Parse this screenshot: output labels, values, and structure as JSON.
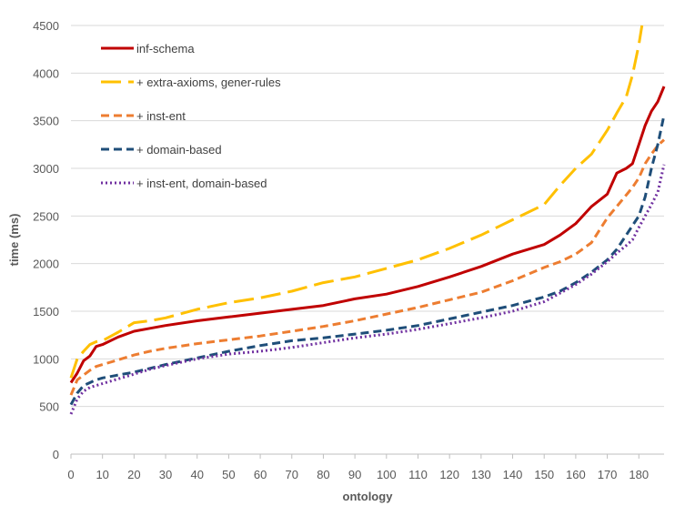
{
  "chart_data": {
    "type": "line",
    "title": "",
    "xlabel": "ontology",
    "ylabel": "time (ms)",
    "xlim": [
      0,
      188
    ],
    "ylim": [
      0,
      4500
    ],
    "xticks": [
      0,
      10,
      20,
      30,
      40,
      50,
      60,
      70,
      80,
      90,
      100,
      110,
      120,
      130,
      140,
      150,
      160,
      170,
      180
    ],
    "yticks": [
      0,
      500,
      1000,
      1500,
      2000,
      2500,
      3000,
      3500,
      4000,
      4500
    ],
    "grid": "horizontal",
    "legend_position": "top-left",
    "series": [
      {
        "name": "inf-schema",
        "color": "#C00000",
        "dash": "solid",
        "x": [
          0,
          2,
          4,
          6,
          8,
          10,
          15,
          20,
          25,
          30,
          40,
          50,
          60,
          70,
          80,
          90,
          100,
          110,
          120,
          130,
          140,
          150,
          155,
          160,
          165,
          170,
          173,
          176,
          178,
          180,
          182,
          184,
          186,
          188
        ],
        "y": [
          750,
          850,
          980,
          1030,
          1130,
          1150,
          1230,
          1290,
          1320,
          1350,
          1400,
          1440,
          1480,
          1520,
          1560,
          1630,
          1680,
          1760,
          1860,
          1970,
          2100,
          2200,
          2300,
          2420,
          2600,
          2730,
          2950,
          3000,
          3050,
          3250,
          3450,
          3600,
          3700,
          3860
        ]
      },
      {
        "name": "+ extra-axioms, gener-rules",
        "color": "#FFC000",
        "dash": "long-dash",
        "x": [
          0,
          2,
          4,
          6,
          8,
          10,
          15,
          20,
          25,
          30,
          40,
          50,
          60,
          70,
          80,
          90,
          100,
          110,
          120,
          130,
          140,
          150,
          155,
          160,
          165,
          170,
          173,
          176,
          178,
          180,
          181
        ],
        "y": [
          800,
          1000,
          1080,
          1150,
          1180,
          1190,
          1280,
          1380,
          1400,
          1430,
          1520,
          1590,
          1640,
          1710,
          1800,
          1860,
          1950,
          2040,
          2160,
          2300,
          2460,
          2620,
          2820,
          3000,
          3150,
          3400,
          3580,
          3750,
          3980,
          4300,
          4500
        ]
      },
      {
        "name": "+ inst-ent",
        "color": "#ED7D31",
        "dash": "dash",
        "x": [
          0,
          2,
          4,
          6,
          8,
          10,
          15,
          20,
          25,
          30,
          40,
          50,
          60,
          70,
          80,
          90,
          100,
          110,
          120,
          130,
          140,
          150,
          155,
          160,
          165,
          170,
          173,
          176,
          178,
          180,
          182,
          184,
          186,
          188
        ],
        "y": [
          620,
          780,
          830,
          880,
          920,
          940,
          990,
          1040,
          1080,
          1110,
          1160,
          1200,
          1240,
          1290,
          1340,
          1400,
          1470,
          1540,
          1620,
          1700,
          1820,
          1960,
          2020,
          2100,
          2220,
          2480,
          2600,
          2720,
          2800,
          2900,
          3050,
          3150,
          3240,
          3300
        ]
      },
      {
        "name": "+ domain-based",
        "color": "#1F4E79",
        "dash": "dash",
        "x": [
          0,
          2,
          4,
          6,
          8,
          10,
          15,
          20,
          25,
          30,
          40,
          50,
          60,
          70,
          80,
          90,
          100,
          110,
          120,
          130,
          140,
          150,
          155,
          160,
          165,
          170,
          173,
          176,
          178,
          180,
          182,
          184,
          186,
          188
        ],
        "y": [
          520,
          640,
          720,
          750,
          780,
          800,
          830,
          860,
          900,
          940,
          1010,
          1080,
          1140,
          1190,
          1220,
          1260,
          1300,
          1350,
          1420,
          1490,
          1560,
          1650,
          1710,
          1800,
          1910,
          2040,
          2150,
          2300,
          2400,
          2500,
          2700,
          3000,
          3250,
          3560
        ]
      },
      {
        "name": "+ inst-ent, domain-based",
        "color": "#7030A0",
        "dash": "dot",
        "x": [
          0,
          2,
          4,
          6,
          8,
          10,
          15,
          20,
          25,
          30,
          40,
          50,
          60,
          70,
          80,
          90,
          100,
          110,
          120,
          130,
          140,
          150,
          155,
          160,
          165,
          170,
          173,
          176,
          178,
          180,
          182,
          184,
          186,
          188
        ],
        "y": [
          420,
          580,
          660,
          700,
          720,
          740,
          790,
          840,
          890,
          930,
          1000,
          1050,
          1080,
          1120,
          1170,
          1220,
          1260,
          1310,
          1370,
          1430,
          1500,
          1600,
          1690,
          1780,
          1890,
          2020,
          2110,
          2190,
          2250,
          2380,
          2500,
          2620,
          2750,
          3040
        ]
      }
    ]
  }
}
